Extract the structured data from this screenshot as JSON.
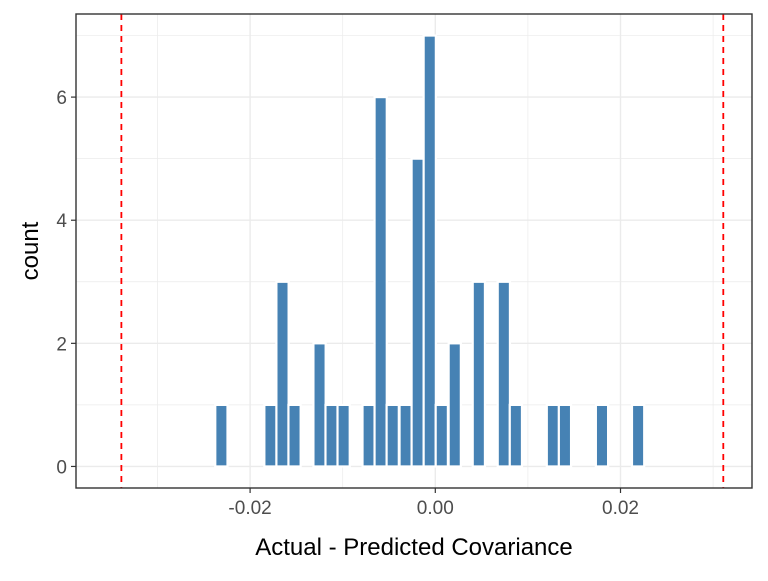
{
  "chart_data": {
    "type": "bar",
    "title": "",
    "xlabel": "Actual - Predicted Covariance",
    "ylabel": "count",
    "xlim": [
      -0.0388,
      0.0342
    ],
    "ylim": [
      -0.35,
      7.35
    ],
    "xticks": [
      -0.02,
      0.0,
      0.02
    ],
    "xtick_labels": [
      "-0.02",
      "0.00",
      "0.02"
    ],
    "yticks": [
      0,
      2,
      4,
      6
    ],
    "ytick_labels": [
      "0",
      "2",
      "4",
      "6"
    ],
    "bin_width": 0.00132,
    "grid": true,
    "bar_color": "#4682B4",
    "reference_lines": {
      "color": "#FF0000",
      "style": "dashed",
      "x": [
        -0.0339,
        0.0311
      ]
    },
    "bins": [
      {
        "x": -0.0337,
        "count": 0
      },
      {
        "x": -0.0324,
        "count": 0
      },
      {
        "x": -0.0311,
        "count": 0
      },
      {
        "x": -0.0297,
        "count": 0
      },
      {
        "x": -0.0284,
        "count": 0
      },
      {
        "x": -0.0271,
        "count": 0
      },
      {
        "x": -0.0258,
        "count": 0
      },
      {
        "x": -0.0244,
        "count": 0
      },
      {
        "x": -0.0231,
        "count": 1
      },
      {
        "x": -0.0218,
        "count": 0
      },
      {
        "x": -0.0205,
        "count": 0
      },
      {
        "x": -0.0191,
        "count": 0
      },
      {
        "x": -0.0178,
        "count": 1
      },
      {
        "x": -0.0165,
        "count": 3
      },
      {
        "x": -0.0152,
        "count": 1
      },
      {
        "x": -0.0138,
        "count": 0
      },
      {
        "x": -0.0125,
        "count": 2
      },
      {
        "x": -0.0112,
        "count": 1
      },
      {
        "x": -0.0099,
        "count": 1
      },
      {
        "x": -0.0085,
        "count": 0
      },
      {
        "x": -0.0072,
        "count": 1
      },
      {
        "x": -0.0059,
        "count": 6
      },
      {
        "x": -0.0046,
        "count": 1
      },
      {
        "x": -0.0032,
        "count": 1
      },
      {
        "x": -0.0019,
        "count": 5
      },
      {
        "x": -0.0006,
        "count": 7
      },
      {
        "x": 0.0007,
        "count": 1
      },
      {
        "x": 0.0021,
        "count": 2
      },
      {
        "x": 0.0034,
        "count": 0
      },
      {
        "x": 0.0047,
        "count": 3
      },
      {
        "x": 0.006,
        "count": 0
      },
      {
        "x": 0.0074,
        "count": 3
      },
      {
        "x": 0.0087,
        "count": 1
      },
      {
        "x": 0.01,
        "count": 0
      },
      {
        "x": 0.0113,
        "count": 0
      },
      {
        "x": 0.0127,
        "count": 1
      },
      {
        "x": 0.014,
        "count": 1
      },
      {
        "x": 0.0153,
        "count": 0
      },
      {
        "x": 0.0166,
        "count": 0
      },
      {
        "x": 0.018,
        "count": 1
      },
      {
        "x": 0.0193,
        "count": 0
      },
      {
        "x": 0.0206,
        "count": 0
      },
      {
        "x": 0.0219,
        "count": 1
      },
      {
        "x": 0.0233,
        "count": 0
      },
      {
        "x": 0.0246,
        "count": 0
      },
      {
        "x": 0.0259,
        "count": 0
      },
      {
        "x": 0.0272,
        "count": 0
      },
      {
        "x": 0.0286,
        "count": 0
      },
      {
        "x": 0.0299,
        "count": 0
      }
    ]
  }
}
